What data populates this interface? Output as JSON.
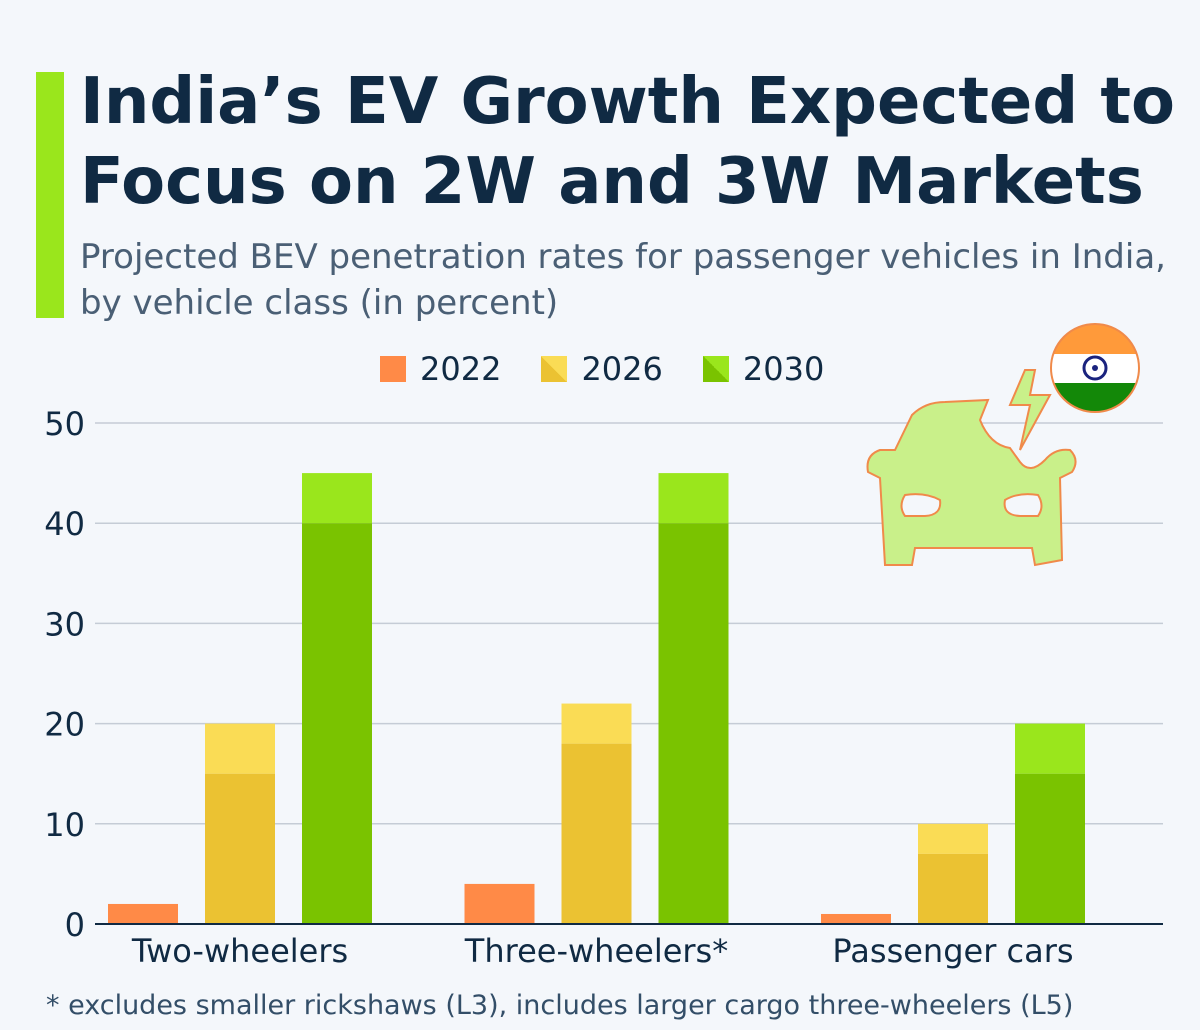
{
  "title": "India’s EV Growth Expected to Focus on 2W and 3W Markets",
  "subtitle": "Projected BEV penetration rates for passenger vehicles in India, by vehicle class (in percent)",
  "footnote": "* excludes smaller rickshaws (L3), includes larger cargo three-wheelers (L5)",
  "icons": [
    "electric-car-icon",
    "india-flag-icon"
  ],
  "chart_data": {
    "type": "bar",
    "title": "India’s EV Growth Expected to Focus on 2W and 3W Markets",
    "categories": [
      "Two-wheelers",
      "Three-wheelers*",
      "Passenger cars"
    ],
    "ylim": [
      0,
      50
    ],
    "yticks": [
      "0",
      "10",
      "20",
      "30",
      "40",
      "50"
    ],
    "grid": true,
    "legend_position": "top",
    "series": [
      {
        "name": "2022",
        "values": [
          2,
          4,
          1
        ],
        "color": "#ff8a47"
      },
      {
        "name": "2026",
        "low": [
          15,
          18,
          7
        ],
        "high": [
          20,
          22,
          10
        ],
        "color": "#ebc232",
        "color_high": "#fadc55"
      },
      {
        "name": "2030",
        "low": [
          40,
          40,
          15
        ],
        "high": [
          45,
          45,
          20
        ],
        "color": "#7ac300",
        "color_high": "#9ae61c"
      }
    ]
  }
}
